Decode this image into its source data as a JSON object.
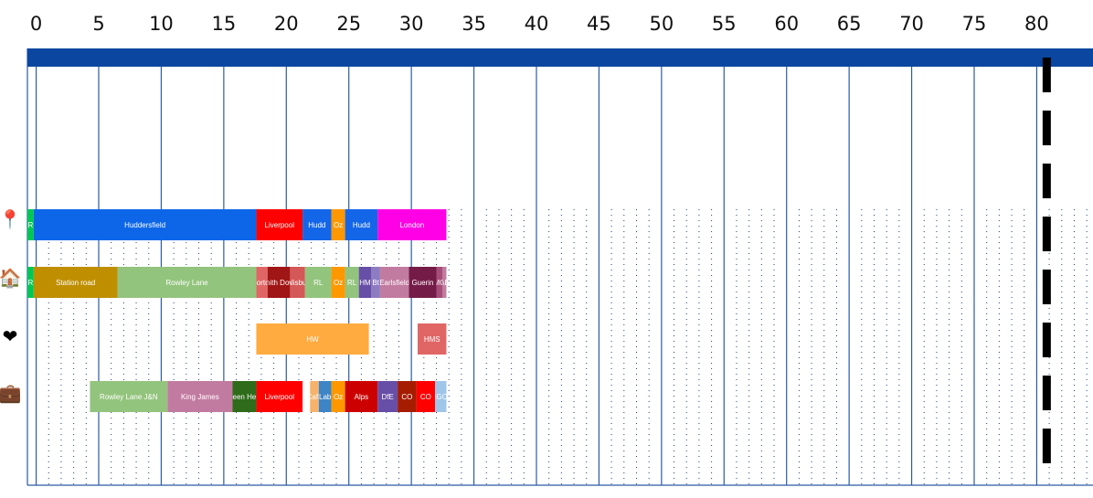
{
  "chart_data": {
    "type": "timeline",
    "x_ticks": [
      0,
      5,
      10,
      15,
      20,
      25,
      30,
      35,
      40,
      45,
      50,
      55,
      60,
      65,
      70,
      75,
      80
    ],
    "xlim": [
      -0.7,
      84.5
    ],
    "marker_x": 80.8,
    "colors": {
      "header": "#0b47a0",
      "major_grid": "#2a5ba8",
      "minor_dots": "#1f3f77",
      "marker": "#000000"
    },
    "rows": [
      {
        "id": "location",
        "icon": "pin-icon",
        "icon_glyph": "📍",
        "bars": [
          {
            "label": "R",
            "start": -0.7,
            "end": -0.2,
            "color": "#00c853"
          },
          {
            "label": "Huddersfield",
            "start": -0.2,
            "end": 17.6,
            "color": "#0d66e8"
          },
          {
            "label": "Liverpool",
            "start": 17.6,
            "end": 21.3,
            "color": "#ff0000"
          },
          {
            "label": "Hudd",
            "start": 21.3,
            "end": 23.6,
            "color": "#1466e8"
          },
          {
            "label": "Oz",
            "start": 23.6,
            "end": 24.7,
            "color": "#ff9800"
          },
          {
            "label": "Hudd",
            "start": 24.7,
            "end": 27.3,
            "color": "#1466e8"
          },
          {
            "label": "London",
            "start": 27.3,
            "end": 32.8,
            "color": "#ff00e6"
          }
        ]
      },
      {
        "id": "home",
        "icon": "house-icon",
        "icon_glyph": "🏠",
        "bars": [
          {
            "label": "R",
            "start": -0.7,
            "end": -0.2,
            "color": "#00c853"
          },
          {
            "label": "Station road",
            "start": -0.2,
            "end": 6.5,
            "color": "#bf8f00"
          },
          {
            "label": "Rowley Lane",
            "start": 6.5,
            "end": 17.6,
            "color": "#93c47d"
          },
          {
            "label": "Morton",
            "start": 17.6,
            "end": 18.5,
            "color": "#e06666"
          },
          {
            "label": "Smith Down",
            "start": 18.5,
            "end": 20.3,
            "color": "#a01515"
          },
          {
            "label": "Salisbury",
            "start": 20.3,
            "end": 21.5,
            "color": "#d55858"
          },
          {
            "label": "RL",
            "start": 21.5,
            "end": 23.6,
            "color": "#93c47d"
          },
          {
            "label": "Oz",
            "start": 23.6,
            "end": 24.7,
            "color": "#ff9800"
          },
          {
            "label": "RL",
            "start": 24.7,
            "end": 25.8,
            "color": "#93c47d"
          },
          {
            "label": "HM",
            "start": 25.8,
            "end": 26.8,
            "color": "#674ea7"
          },
          {
            "label": "Bt",
            "start": 26.8,
            "end": 27.5,
            "color": "#8e7cc3"
          },
          {
            "label": "Earlsfield",
            "start": 27.5,
            "end": 29.8,
            "color": "#c27ba0"
          },
          {
            "label": "Guerin",
            "start": 29.8,
            "end": 32.0,
            "color": "#741b47"
          },
          {
            "label": "MG",
            "start": 32.0,
            "end": 32.5,
            "color": "#a64d79"
          },
          {
            "label": "AE",
            "start": 32.5,
            "end": 32.8,
            "color": "#c27ba0"
          }
        ]
      },
      {
        "id": "relationship",
        "icon": "heart-icon",
        "icon_glyph": "❤",
        "bars": [
          {
            "label": "HW",
            "start": 17.6,
            "end": 26.6,
            "color": "#ffab40"
          },
          {
            "label": "HMS",
            "start": 30.5,
            "end": 32.8,
            "color": "#e06666"
          }
        ]
      },
      {
        "id": "work",
        "icon": "briefcase-icon",
        "icon_glyph": "💼",
        "bars": [
          {
            "label": "Rowley Lane J&N",
            "start": 4.3,
            "end": 10.5,
            "color": "#93c47d"
          },
          {
            "label": "King James",
            "start": 10.5,
            "end": 15.7,
            "color": "#c27ba0"
          },
          {
            "label": "Green Head",
            "start": 15.7,
            "end": 17.6,
            "color": "#2e6b1a"
          },
          {
            "label": "Liverpool",
            "start": 17.6,
            "end": 21.3,
            "color": "#ff0000"
          },
          {
            "label": "Cafe",
            "start": 21.9,
            "end": 22.6,
            "color": "#f6b26b"
          },
          {
            "label": "Lab",
            "start": 22.6,
            "end": 23.6,
            "color": "#3d85c6"
          },
          {
            "label": "Oz",
            "start": 23.6,
            "end": 24.7,
            "color": "#ff9800"
          },
          {
            "label": "Alps",
            "start": 24.7,
            "end": 27.3,
            "color": "#cc0000"
          },
          {
            "label": "DfE",
            "start": 27.3,
            "end": 28.9,
            "color": "#674ea7"
          },
          {
            "label": "CO",
            "start": 28.9,
            "end": 30.4,
            "color": "#a61c00"
          },
          {
            "label": "CO",
            "start": 30.4,
            "end": 31.9,
            "color": "#ff0000"
          },
          {
            "label": "IGC",
            "start": 31.9,
            "end": 32.8,
            "color": "#9fc5e8"
          }
        ]
      }
    ]
  }
}
